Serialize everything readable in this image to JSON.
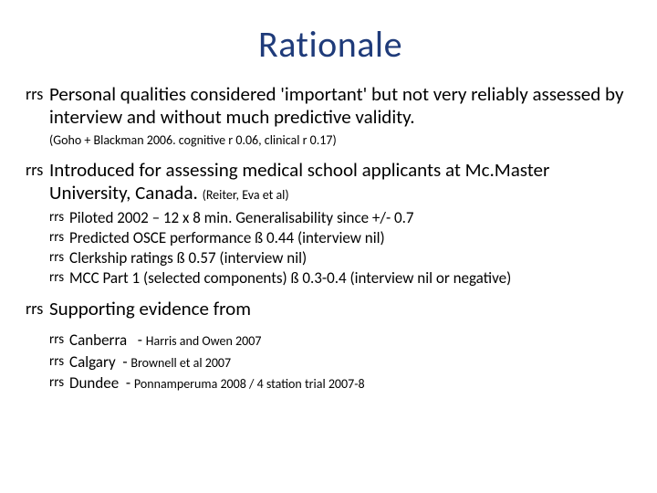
{
  "title": "Rationale",
  "b1": {
    "text": "Personal qualities considered 'important' but not very reliably assessed by interview and without much predictive validity.",
    "note": "(Goho + Blackman 2006.  cognitive r 0.06, clinical r 0.17)"
  },
  "b2": {
    "text": "Introduced for assessing medical school applicants at Mc.Master University, Canada.",
    "cite": "(Reiter, Eva et al)",
    "sub": [
      "Piloted 2002 – 12 x 8 min.  Generalisability since +/- 0.7",
      "Predicted OSCE performance ß 0.44 (interview nil)",
      "Clerkship ratings ß 0.57 (interview nil)",
      "MCC Part 1 (selected components) ß 0.3-0.4 (interview nil or negative)"
    ]
  },
  "b3": {
    "text": "Supporting evidence from",
    "sub": [
      {
        "place": "Canberra",
        "src": "Harris and Owen 2007"
      },
      {
        "place": "Calgary",
        "src": "Brownell et al 2007"
      },
      {
        "place": "Dundee",
        "src": "Ponnamperuma 2008 / 4 station trial 2007-8"
      }
    ]
  }
}
